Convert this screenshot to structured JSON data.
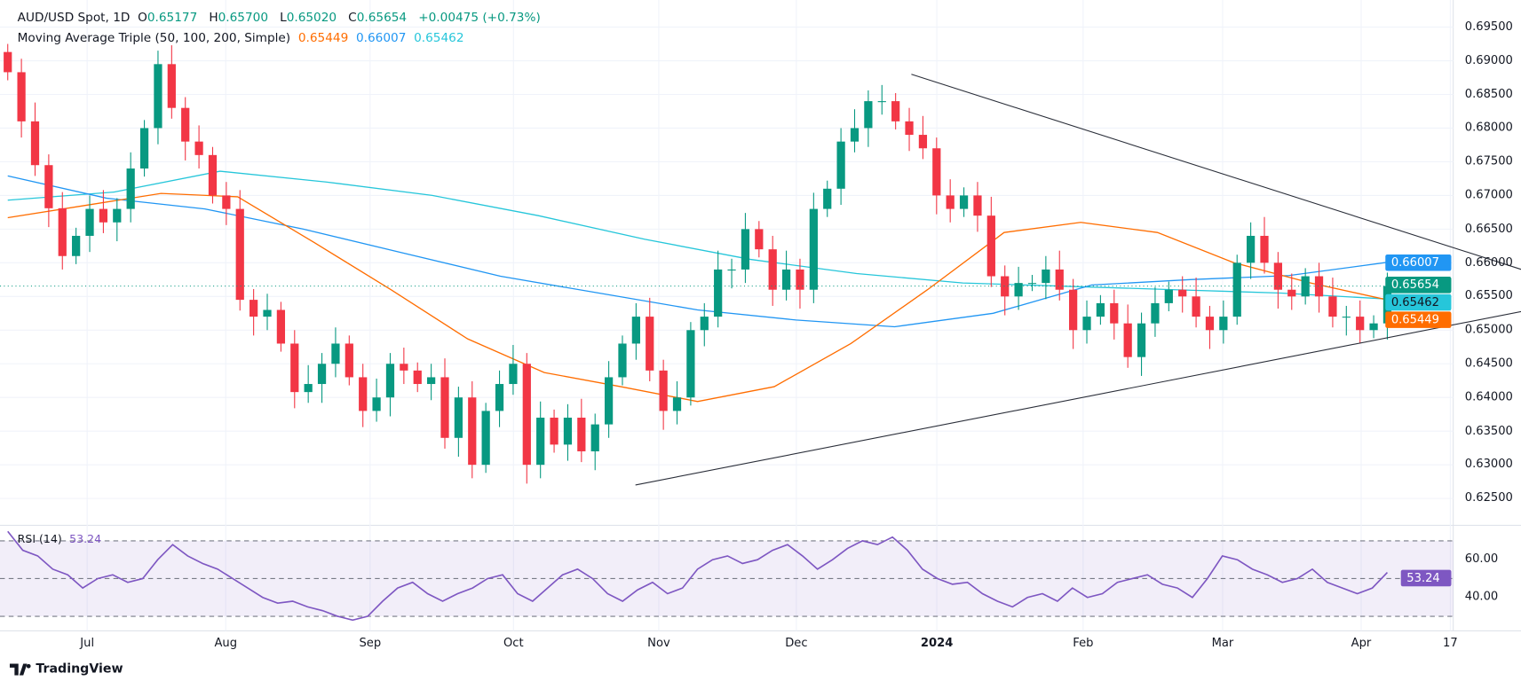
{
  "header": {
    "symbol": "AUD/USD Spot, 1D",
    "o_label": "O",
    "o": "0.65177",
    "h_label": "H",
    "h": "0.65700",
    "l_label": "L",
    "l": "0.65020",
    "c_label": "C",
    "c": "0.65654",
    "change": "+0.00475 (+0.73%)",
    "ma_title": "Moving Average Triple (50, 100, 200, Simple)",
    "ma50": "0.65449",
    "ma100": "0.66007",
    "ma200": "0.65462"
  },
  "rsi": {
    "title": "RSI (14)",
    "value": "53.24",
    "levels": [
      "60.00",
      "40.00"
    ]
  },
  "badges": {
    "ma100": "0.66007",
    "last": "0.65654",
    "ma200": "0.65462",
    "ma50": "0.65449",
    "rsi": "53.24"
  },
  "price_ticks": [
    "0.69500",
    "0.69000",
    "0.68500",
    "0.68000",
    "0.67500",
    "0.67000",
    "0.66500",
    "0.66000",
    "0.65500",
    "0.65000",
    "0.64500",
    "0.64000",
    "0.63500",
    "0.63000",
    "0.62500"
  ],
  "time_labels": [
    "Jul",
    "Aug",
    "Sep",
    "Oct",
    "Nov",
    "Dec",
    "2024",
    "Feb",
    "Mar",
    "Apr",
    "17"
  ],
  "brand": "TradingView",
  "colors": {
    "up": "#089981",
    "down": "#f23645",
    "ma50": "#ff6d00",
    "ma100": "#2196f3",
    "ma200": "#26c6da",
    "rsi": "#7e57c2"
  },
  "chart_data": {
    "type": "candlestick",
    "title": "AUD/USD Spot, 1D",
    "ylim": [
      0.623,
      0.697
    ],
    "closes": [
      0.6883,
      0.681,
      0.6745,
      0.6681,
      0.661,
      0.664,
      0.668,
      0.666,
      0.668,
      0.674,
      0.68,
      0.6895,
      0.683,
      0.678,
      0.676,
      0.67,
      0.668,
      0.6545,
      0.652,
      0.653,
      0.648,
      0.6408,
      0.642,
      0.645,
      0.648,
      0.643,
      0.638,
      0.64,
      0.645,
      0.644,
      0.642,
      0.643,
      0.634,
      0.64,
      0.63,
      0.638,
      0.642,
      0.645,
      0.63,
      0.637,
      0.633,
      0.637,
      0.632,
      0.636,
      0.643,
      0.648,
      0.652,
      0.644,
      0.638,
      0.64,
      0.65,
      0.652,
      0.659,
      0.659,
      0.665,
      0.662,
      0.656,
      0.659,
      0.656,
      0.668,
      0.671,
      0.678,
      0.68,
      0.684,
      0.684,
      0.681,
      0.679,
      0.677,
      0.67,
      0.668,
      0.67,
      0.667,
      0.658,
      0.655,
      0.657,
      0.657,
      0.659,
      0.656,
      0.65,
      0.652,
      0.654,
      0.651,
      0.646,
      0.651,
      0.654,
      0.656,
      0.655,
      0.652,
      0.65,
      0.652,
      0.66,
      0.664,
      0.66,
      0.656,
      0.655,
      0.658,
      0.655,
      0.652,
      0.652,
      0.65,
      0.651,
      0.65654
    ],
    "ma50": [
      0.6667,
      0.6685,
      0.6703,
      0.6698,
      0.663,
      0.656,
      0.6487,
      0.6437,
      0.6416,
      0.6394,
      0.6416,
      0.648,
      0.656,
      0.6645,
      0.666,
      0.6645,
      0.66,
      0.657,
      0.65449
    ],
    "ma100": [
      0.6729,
      0.6696,
      0.668,
      0.665,
      0.6615,
      0.658,
      0.6555,
      0.653,
      0.6515,
      0.6505,
      0.6525,
      0.6567,
      0.6575,
      0.6581,
      0.66007
    ],
    "ma200": [
      0.6693,
      0.6705,
      0.6736,
      0.672,
      0.67,
      0.667,
      0.6635,
      0.6605,
      0.6584,
      0.657,
      0.6565,
      0.656,
      0.6555,
      0.65462
    ],
    "trendlines": [
      {
        "name": "upper",
        "from": {
          "bar_frac": 0.655,
          "price": 0.688
        },
        "to": {
          "bar_frac": 1.108,
          "price": 0.6583
        }
      },
      {
        "name": "lower",
        "from": {
          "bar_frac": 0.455,
          "price": 0.627
        },
        "to": {
          "bar_frac": 1.118,
          "price": 0.6536
        }
      }
    ],
    "rsi_series": [
      75,
      65,
      62,
      55,
      52,
      45,
      50,
      52,
      48,
      50,
      60,
      68,
      62,
      58,
      55,
      50,
      45,
      40,
      37,
      38,
      35,
      33,
      30,
      28,
      30,
      38,
      45,
      48,
      42,
      38,
      42,
      45,
      50,
      52,
      42,
      38,
      45,
      52,
      55,
      50,
      42,
      38,
      44,
      48,
      42,
      45,
      55,
      60,
      62,
      58,
      60,
      65,
      68,
      62,
      55,
      60,
      66,
      70,
      68,
      72,
      65,
      55,
      50,
      47,
      48,
      42,
      38,
      35,
      40,
      42,
      38,
      45,
      40,
      42,
      48,
      50,
      52,
      47,
      45,
      40,
      50,
      62,
      60,
      55,
      52,
      48,
      50,
      55,
      48,
      45,
      42,
      45,
      53.24
    ],
    "rsi_levels": [
      70,
      50,
      30
    ]
  }
}
